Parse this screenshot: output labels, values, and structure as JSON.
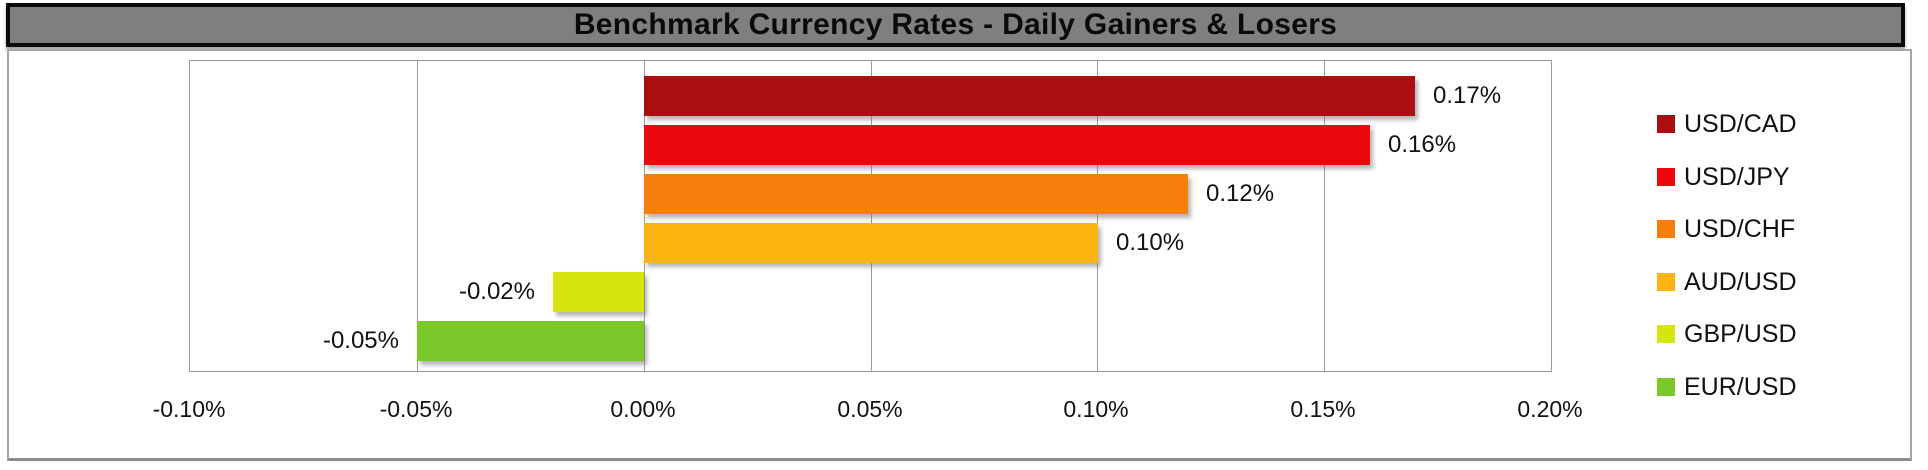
{
  "title_bar": {
    "title": "Benchmark Currency Rates - Daily Gainers & Losers"
  },
  "chart_data": {
    "type": "bar",
    "orientation": "horizontal",
    "title": "Benchmark Currency Rates - Daily Gainers & Losers",
    "categories": [
      "USD/CAD",
      "USD/JPY",
      "USD/CHF",
      "AUD/USD",
      "GBP/USD",
      "EUR/USD"
    ],
    "values": [
      0.17,
      0.16,
      0.12,
      0.1,
      -0.02,
      -0.05
    ],
    "value_labels": [
      "0.17%",
      "0.16%",
      "0.12%",
      "0.10%",
      "-0.02%",
      "-0.05%"
    ],
    "bar_colors": [
      "#aa0e10",
      "#ea090d",
      "#f67e0a",
      "#fbb40f",
      "#d6e50e",
      "#7ac82a"
    ],
    "x_ticks": [
      "-0.10%",
      "-0.05%",
      "0.00%",
      "0.05%",
      "0.10%",
      "0.15%",
      "0.20%"
    ],
    "x_tick_values": [
      -0.1,
      -0.05,
      0.0,
      0.05,
      0.1,
      0.15,
      0.2
    ],
    "xlim": [
      -0.1,
      0.2
    ],
    "grid": "vertical-gridlines-on",
    "legend_position": "right",
    "legend_entries": [
      {
        "label": "USD/CAD",
        "color": "#aa0e10"
      },
      {
        "label": "USD/JPY",
        "color": "#ea090d"
      },
      {
        "label": "USD/CHF",
        "color": "#f67e0a"
      },
      {
        "label": "AUD/USD",
        "color": "#fbb40f"
      },
      {
        "label": "GBP/USD",
        "color": "#d6e50e"
      },
      {
        "label": "EUR/USD",
        "color": "#7ac82a"
      }
    ]
  },
  "colors": {
    "title_bar_bg": "#7f7f7f",
    "title_bar_border": "#0a0a0a",
    "chart_box_border": "#a6a6a6",
    "gridline": "#9a9a9a",
    "text": "#111111"
  }
}
